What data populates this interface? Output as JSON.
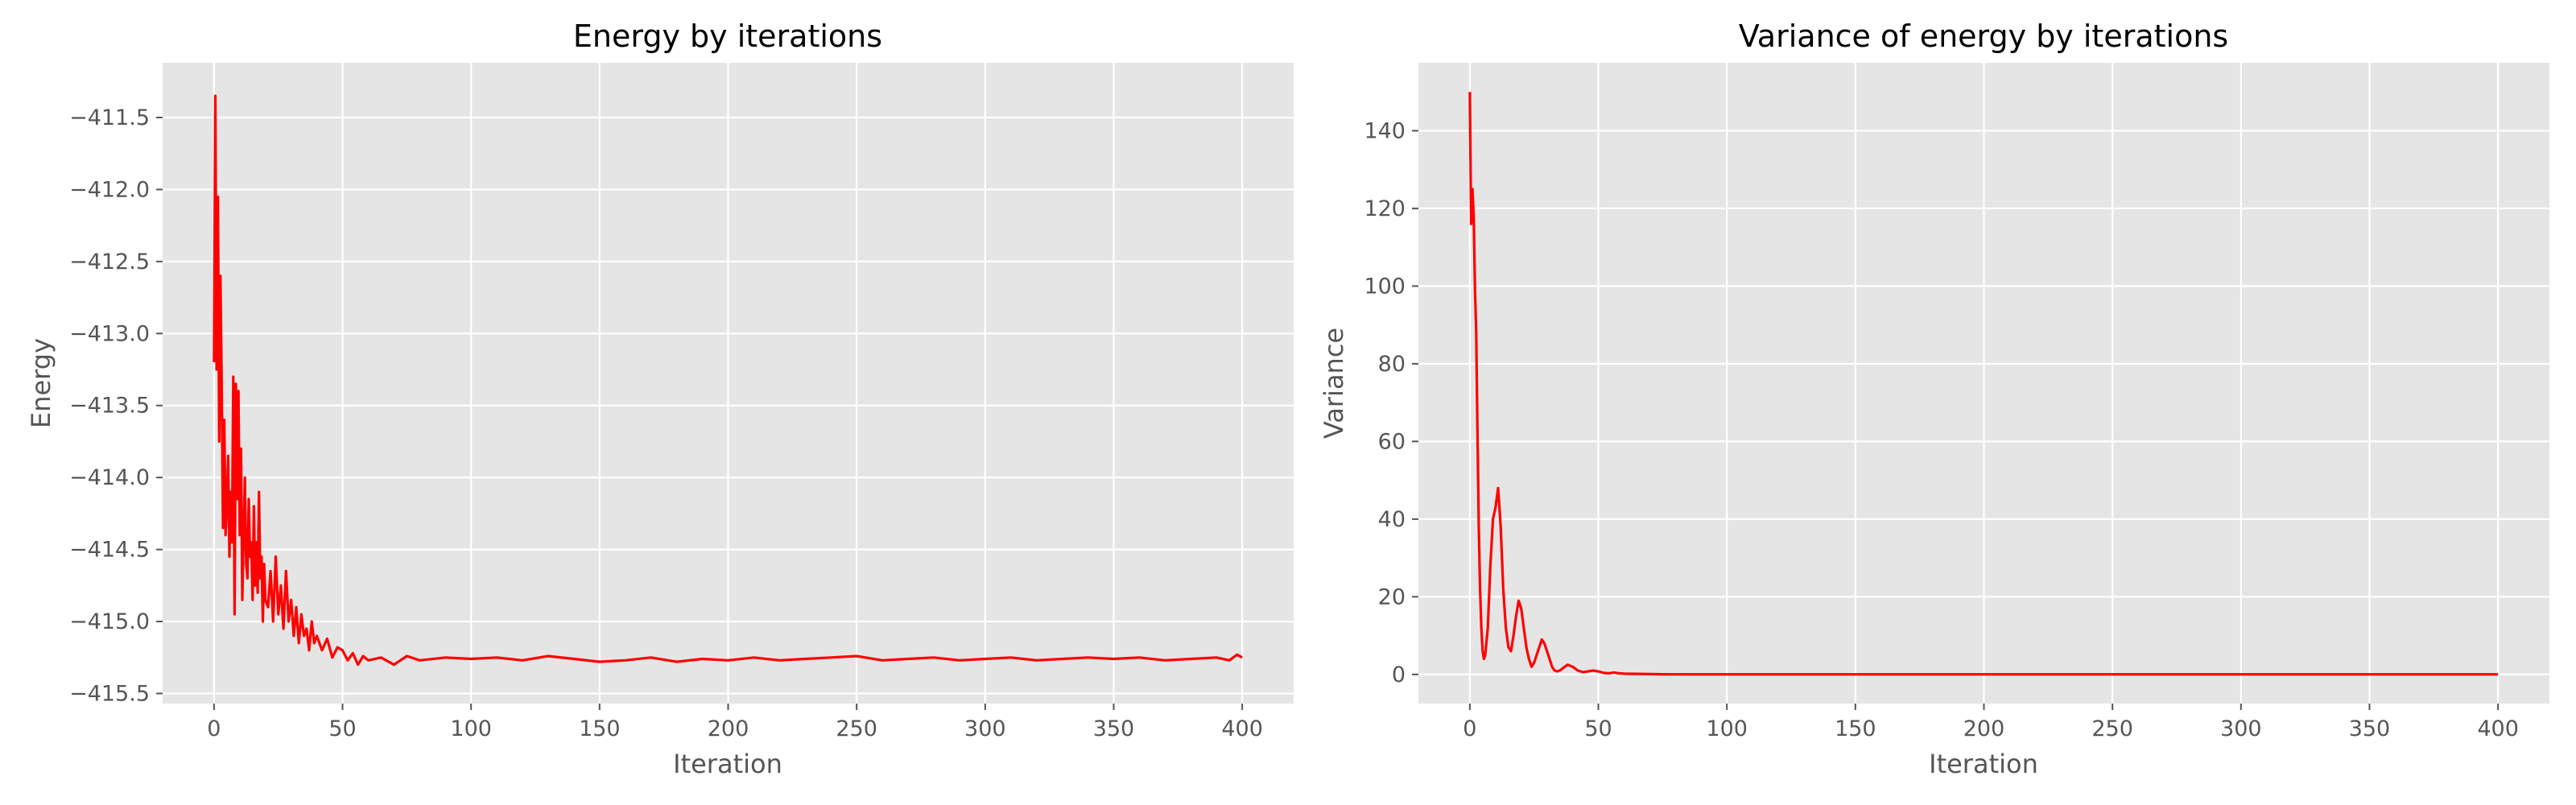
{
  "chart_data": [
    {
      "type": "line",
      "title": "Energy by iterations",
      "xlabel": "Iteration",
      "ylabel": "Energy",
      "xlim": [
        -20,
        420
      ],
      "ylim": [
        -415.57,
        -411.12
      ],
      "xticks": [
        0,
        50,
        100,
        150,
        200,
        250,
        300,
        350,
        400
      ],
      "xtick_labels": [
        "0",
        "50",
        "100",
        "150",
        "200",
        "250",
        "300",
        "350",
        "400"
      ],
      "yticks": [
        -411.5,
        -412.0,
        -412.5,
        -413.0,
        -413.5,
        -414.0,
        -414.5,
        -415.0,
        -415.5
      ],
      "ytick_labels": [
        "−411.5",
        "−412.0",
        "−412.5",
        "−413.0",
        "−413.5",
        "−414.0",
        "−414.5",
        "−415.0",
        "−415.5"
      ],
      "grid": true,
      "series": [
        {
          "color": "#ff0000",
          "x": [
            0,
            0.5,
            1,
            1.5,
            2,
            2.5,
            3,
            3.5,
            4,
            4.5,
            5,
            5.5,
            6,
            6.5,
            7,
            7.5,
            8,
            8.5,
            9,
            9.5,
            10,
            10.5,
            11,
            11.5,
            12,
            12.5,
            13,
            13.5,
            14,
            14.5,
            15,
            15.5,
            16,
            16.5,
            17,
            17.5,
            18,
            18.5,
            19,
            19.5,
            20,
            21,
            22,
            23,
            24,
            25,
            26,
            27,
            28,
            29,
            30,
            31,
            32,
            33,
            34,
            35,
            36,
            37,
            38,
            39,
            40,
            42,
            44,
            46,
            48,
            50,
            52,
            54,
            56,
            58,
            60,
            65,
            70,
            75,
            80,
            90,
            100,
            110,
            120,
            130,
            140,
            150,
            160,
            170,
            180,
            190,
            200,
            210,
            220,
            230,
            240,
            250,
            260,
            270,
            280,
            290,
            300,
            310,
            320,
            330,
            340,
            350,
            360,
            370,
            380,
            390,
            395,
            398,
            400
          ],
          "y": [
            -413.2,
            -411.35,
            -413.25,
            -412.05,
            -413.75,
            -412.6,
            -413.35,
            -414.35,
            -413.6,
            -414.4,
            -414.2,
            -413.85,
            -414.55,
            -414.1,
            -414.45,
            -413.3,
            -414.95,
            -413.35,
            -414.15,
            -413.4,
            -414.4,
            -413.8,
            -414.85,
            -414.4,
            -414.0,
            -414.6,
            -414.7,
            -414.15,
            -414.55,
            -414.45,
            -414.85,
            -414.2,
            -414.75,
            -414.45,
            -414.8,
            -414.1,
            -414.7,
            -414.55,
            -415.0,
            -414.6,
            -414.85,
            -414.9,
            -414.65,
            -415.0,
            -414.55,
            -414.95,
            -414.75,
            -415.05,
            -414.65,
            -415.0,
            -414.85,
            -415.1,
            -414.9,
            -415.15,
            -414.95,
            -415.1,
            -415.05,
            -415.2,
            -415.0,
            -415.15,
            -415.1,
            -415.2,
            -415.12,
            -415.25,
            -415.18,
            -415.2,
            -415.27,
            -415.22,
            -415.3,
            -415.24,
            -415.27,
            -415.25,
            -415.3,
            -415.24,
            -415.27,
            -415.25,
            -415.26,
            -415.25,
            -415.27,
            -415.24,
            -415.26,
            -415.28,
            -415.27,
            -415.25,
            -415.28,
            -415.26,
            -415.27,
            -415.25,
            -415.27,
            -415.26,
            -415.25,
            -415.24,
            -415.27,
            -415.26,
            -415.25,
            -415.27,
            -415.26,
            -415.25,
            -415.27,
            -415.26,
            -415.25,
            -415.26,
            -415.25,
            -415.27,
            -415.26,
            -415.25,
            -415.27,
            -415.23,
            -415.25
          ]
        }
      ]
    },
    {
      "type": "line",
      "title": "Variance of energy by iterations",
      "xlabel": "Iteration",
      "ylabel": "Variance",
      "xlim": [
        -20,
        420
      ],
      "ylim": [
        -7.5,
        157.5
      ],
      "xticks": [
        0,
        50,
        100,
        150,
        200,
        250,
        300,
        350,
        400
      ],
      "xtick_labels": [
        "0",
        "50",
        "100",
        "150",
        "200",
        "250",
        "300",
        "350",
        "400"
      ],
      "yticks": [
        0,
        20,
        40,
        60,
        80,
        100,
        120,
        140
      ],
      "ytick_labels": [
        "0",
        "20",
        "40",
        "60",
        "80",
        "100",
        "120",
        "140"
      ],
      "grid": true,
      "series": [
        {
          "color": "#ff0000",
          "x": [
            0,
            0.5,
            1,
            1.5,
            2,
            2.5,
            3,
            3.5,
            4,
            4.5,
            5,
            5.5,
            6,
            7,
            8,
            9,
            10,
            11,
            12,
            13,
            14,
            15,
            16,
            17,
            18,
            19,
            20,
            21,
            22,
            23,
            24,
            25,
            26,
            27,
            28,
            29,
            30,
            31,
            32,
            33,
            34,
            35,
            36,
            38,
            40,
            42,
            44,
            46,
            48,
            50,
            52,
            54,
            56,
            58,
            60,
            65,
            70,
            75,
            80,
            100,
            150,
            200,
            250,
            300,
            350,
            400
          ],
          "y": [
            150,
            116,
            125,
            118,
            99,
            88,
            62,
            38,
            22,
            12,
            6,
            4,
            5,
            12,
            28,
            40,
            43,
            48,
            38,
            22,
            12,
            7,
            6,
            10,
            15,
            19,
            17,
            12,
            7,
            4,
            2,
            3,
            5,
            7,
            9,
            8,
            6,
            4,
            2,
            1,
            0.8,
            1,
            1.5,
            2.5,
            2,
            1,
            0.6,
            0.8,
            1,
            0.8,
            0.4,
            0.3,
            0.5,
            0.3,
            0.2,
            0.15,
            0.1,
            0.05,
            0.03,
            0.02,
            0.02,
            0.02,
            0.02,
            0.02,
            0.02,
            0.02
          ]
        }
      ]
    }
  ]
}
